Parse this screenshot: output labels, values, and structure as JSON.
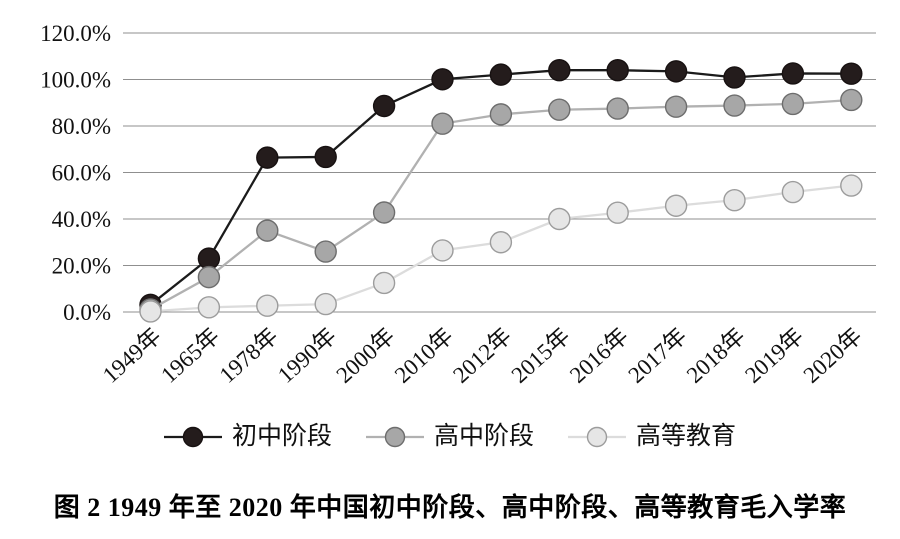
{
  "figure": {
    "caption": "图 2  1949 年至 2020 年中国初中阶段、高中阶段、高等教育毛入学率"
  },
  "colors": {
    "gridline": "#8f8f8f",
    "axis_text": "#111111",
    "background": "#ffffff"
  },
  "chart_data": {
    "type": "line",
    "title": "",
    "xlabel": "",
    "ylabel": "",
    "categories": [
      "1949年",
      "1965年",
      "1978年",
      "1990年",
      "2000年",
      "2010年",
      "2012年",
      "2015年",
      "2016年",
      "2017年",
      "2018年",
      "2019年",
      "2020年"
    ],
    "ylim": [
      0,
      120
    ],
    "yticks": [
      {
        "value": 0,
        "label": "0.0%"
      },
      {
        "value": 20,
        "label": "20.0%"
      },
      {
        "value": 40,
        "label": "40.0%"
      },
      {
        "value": 60,
        "label": "60.0%"
      },
      {
        "value": 80,
        "label": "80.0%"
      },
      {
        "value": 100,
        "label": "100.0%"
      },
      {
        "value": 120,
        "label": "120.0%"
      }
    ],
    "grid": "horizontal",
    "legend_position": "bottom",
    "series": [
      {
        "name": "初中阶段",
        "values": [
          3.1,
          23.0,
          66.4,
          66.7,
          88.6,
          100.1,
          102.1,
          104.0,
          104.0,
          103.5,
          100.9,
          102.6,
          102.5
        ],
        "line_color": "#1b1b1b",
        "marker_fill": "#241c1c",
        "marker_stroke": "#171111"
      },
      {
        "name": "高中阶段",
        "values": [
          1.1,
          15.0,
          35.0,
          26.0,
          42.8,
          81.0,
          85.0,
          87.0,
          87.5,
          88.3,
          88.8,
          89.5,
          91.2
        ],
        "line_color": "#b1b1b1",
        "marker_fill": "#a7a7a7",
        "marker_stroke": "#6d6d6d"
      },
      {
        "name": "高等教育",
        "values": [
          0.26,
          2.0,
          2.7,
          3.4,
          12.5,
          26.5,
          30.0,
          40.0,
          42.7,
          45.7,
          48.1,
          51.6,
          54.4
        ],
        "line_color": "#dcdcdc",
        "marker_fill": "#e6e6e6",
        "marker_stroke": "#9c9c9c"
      }
    ]
  }
}
